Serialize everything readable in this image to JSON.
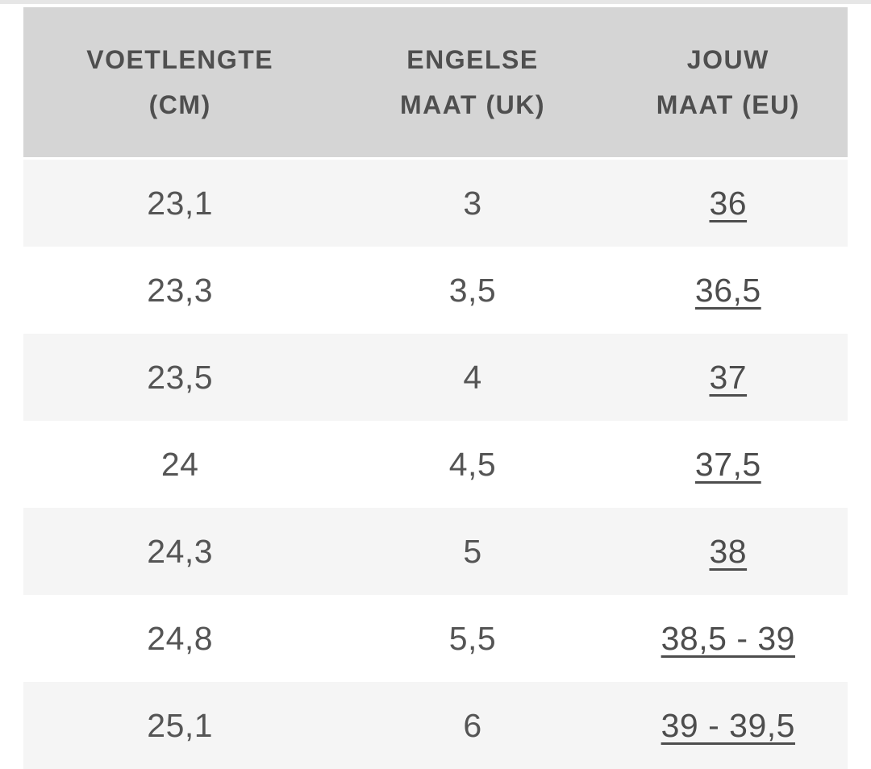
{
  "page": {
    "top_strip_color": "#e6e6e6",
    "background_color": "#ffffff"
  },
  "table": {
    "colors": {
      "header_background": "#d5d5d5",
      "alt_row_background": "#f5f5f5",
      "row_background": "#ffffff",
      "header_text": "#4f4f4f",
      "cell_text": "#555555",
      "link_text": "#4d4d4d"
    },
    "headers": [
      {
        "line1": "VOETLENGTE",
        "line2": "(CM)"
      },
      {
        "line1": "ENGELSE",
        "line2": "MAAT (UK)"
      },
      {
        "line1": "JOUW",
        "line2": "MAAT (EU)"
      }
    ],
    "rows": [
      {
        "cm": "23,1",
        "uk": "3",
        "eu": "36"
      },
      {
        "cm": "23,3",
        "uk": "3,5",
        "eu": "36,5"
      },
      {
        "cm": "23,5",
        "uk": "4",
        "eu": "37"
      },
      {
        "cm": "24",
        "uk": "4,5",
        "eu": "37,5"
      },
      {
        "cm": "24,3",
        "uk": "5",
        "eu": "38"
      },
      {
        "cm": "24,8",
        "uk": "5,5",
        "eu": "38,5 - 39"
      },
      {
        "cm": "25,1",
        "uk": "6",
        "eu": "39 - 39,5"
      }
    ]
  }
}
